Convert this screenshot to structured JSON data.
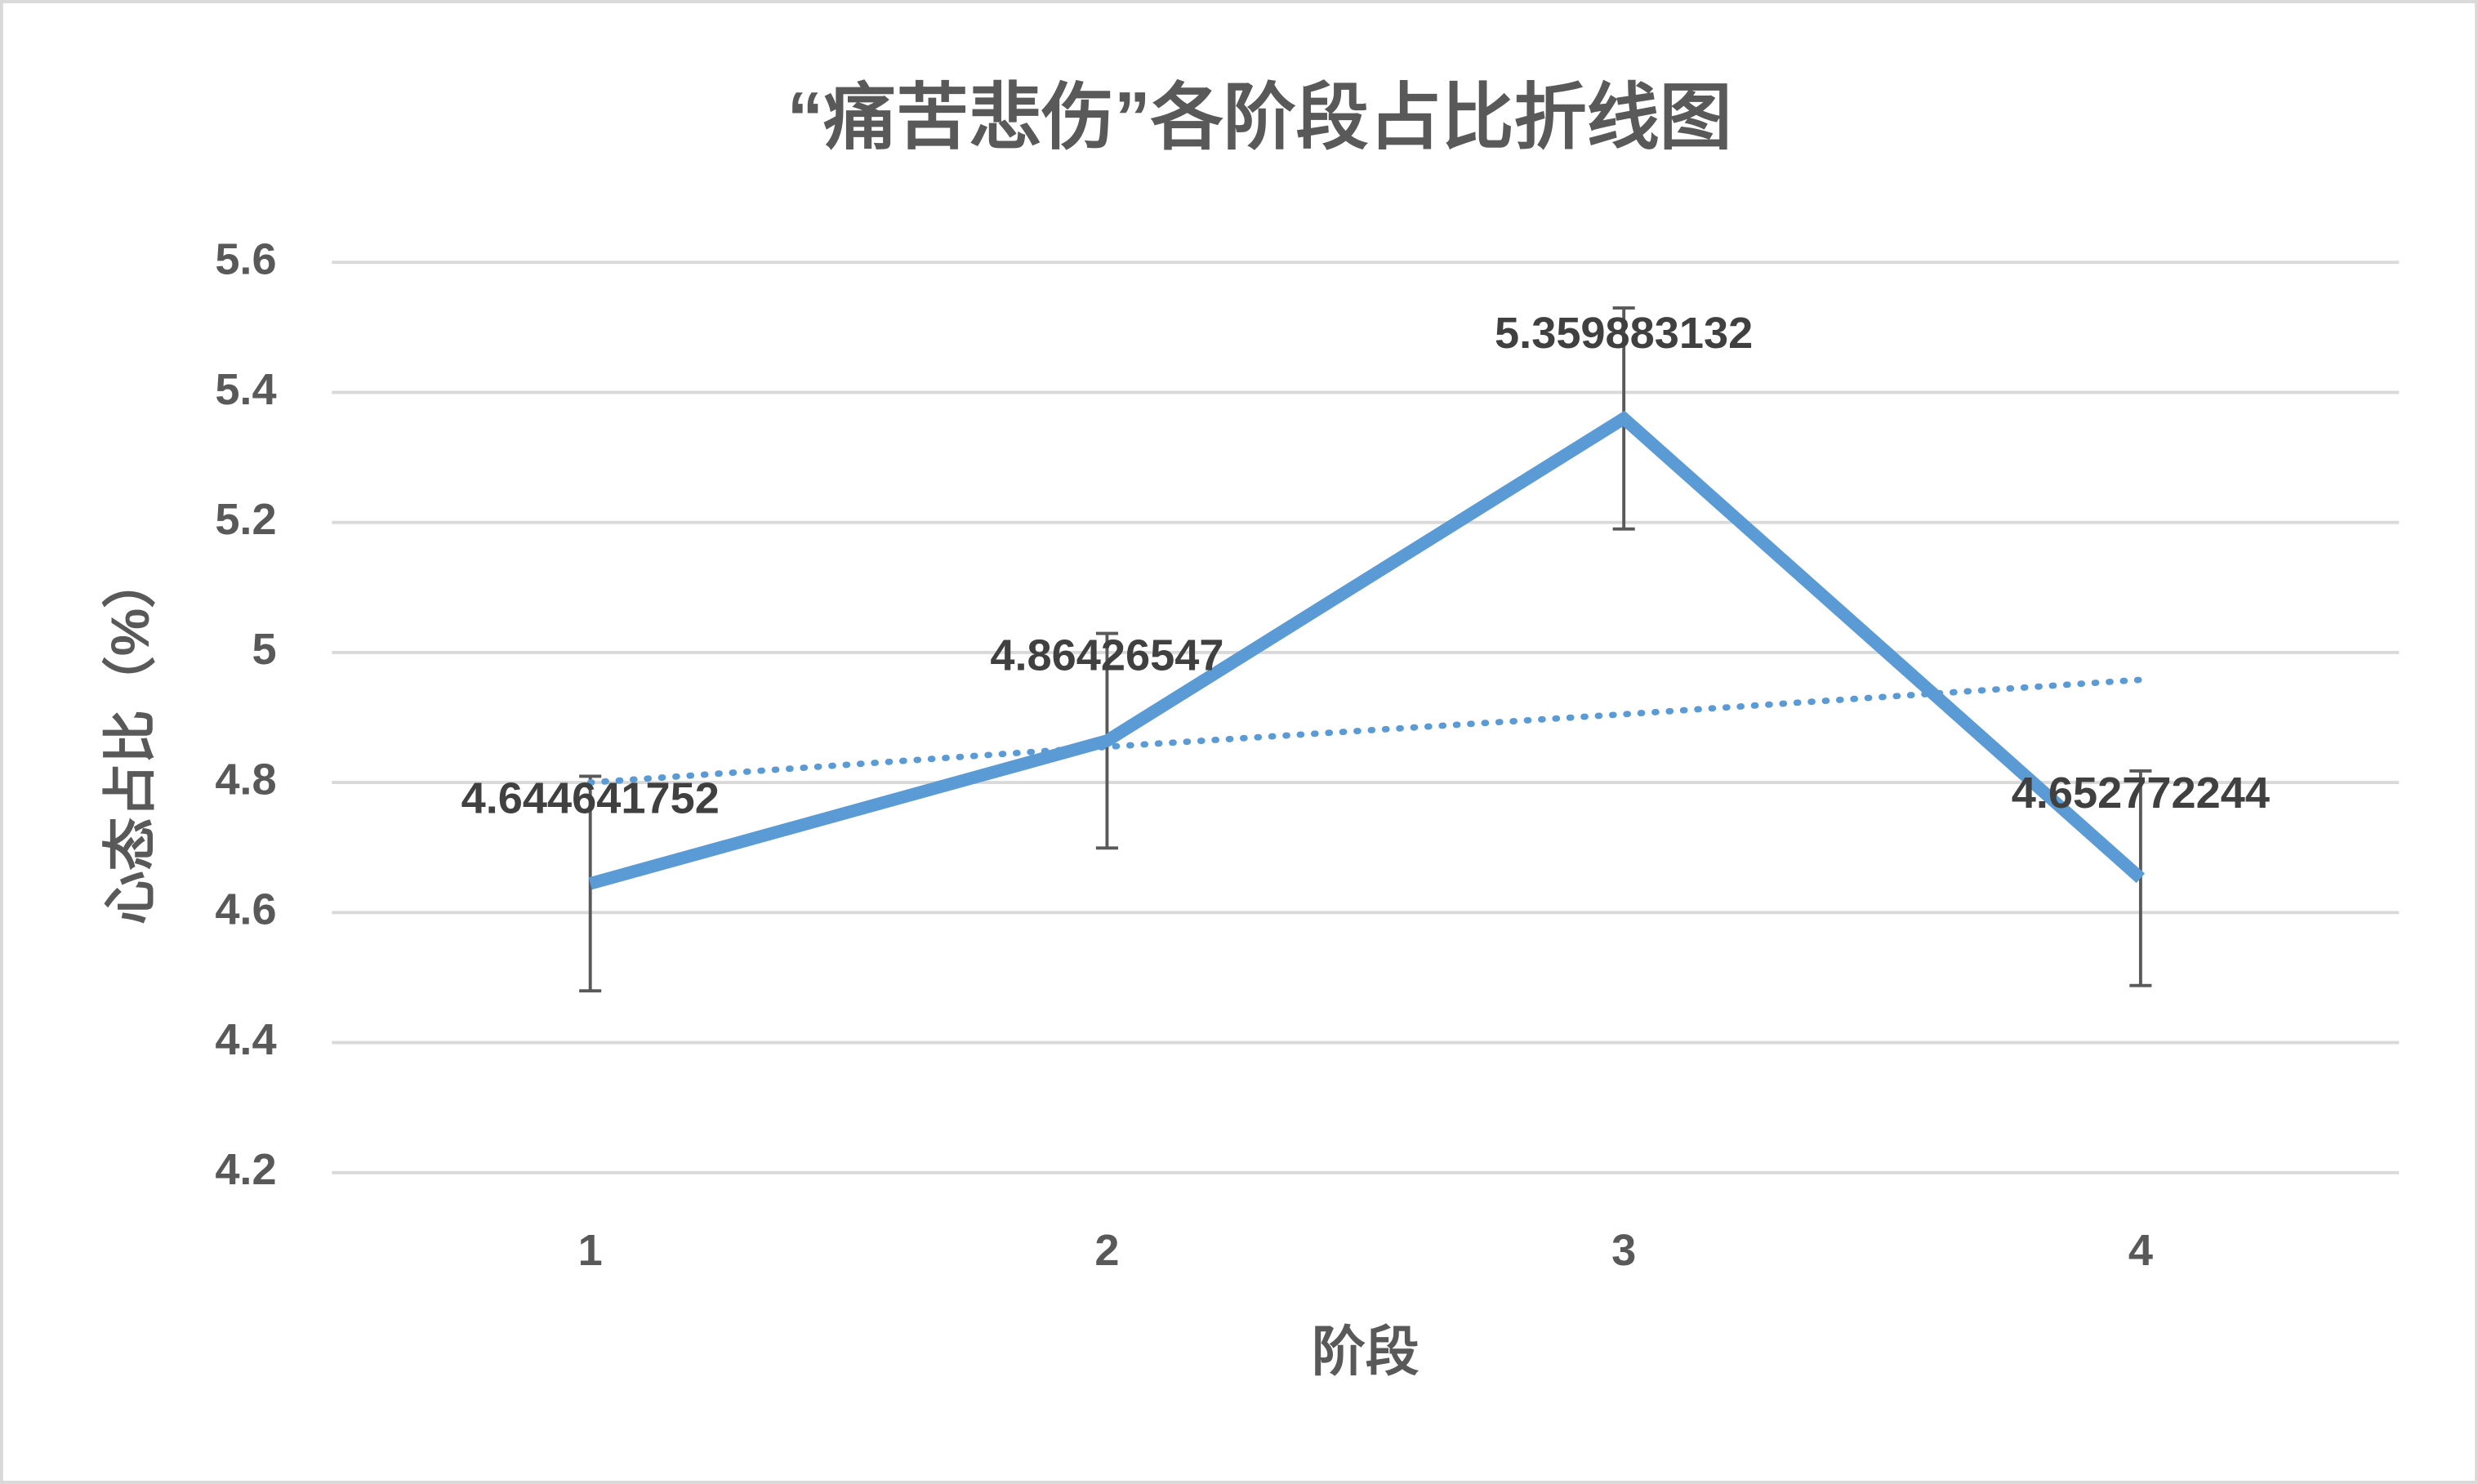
{
  "chart_data": {
    "type": "line",
    "title": "“痛苦悲伤”各阶段占比折线图",
    "x_label": "阶段",
    "y_label": "心态占比（%）",
    "categories": [
      "1",
      "2",
      "3",
      "4"
    ],
    "series": [
      {
        "color": "#5b9bd5",
        "values": [
          4.644641752,
          4.86426547,
          5.359883132,
          4.652772244
        ],
        "errors": [
          0.165,
          0.165,
          0.17,
          0.165
        ]
      }
    ],
    "trendline": {
      "type": "linear",
      "color": "#5b9bd5",
      "values": [
        4.8,
        4.855,
        4.905,
        4.958
      ]
    },
    "ylim": [
      4.2,
      5.6
    ],
    "yticks": [
      4.2,
      4.4,
      4.6,
      4.8,
      5,
      5.2,
      5.4,
      5.6
    ],
    "grid": true
  }
}
